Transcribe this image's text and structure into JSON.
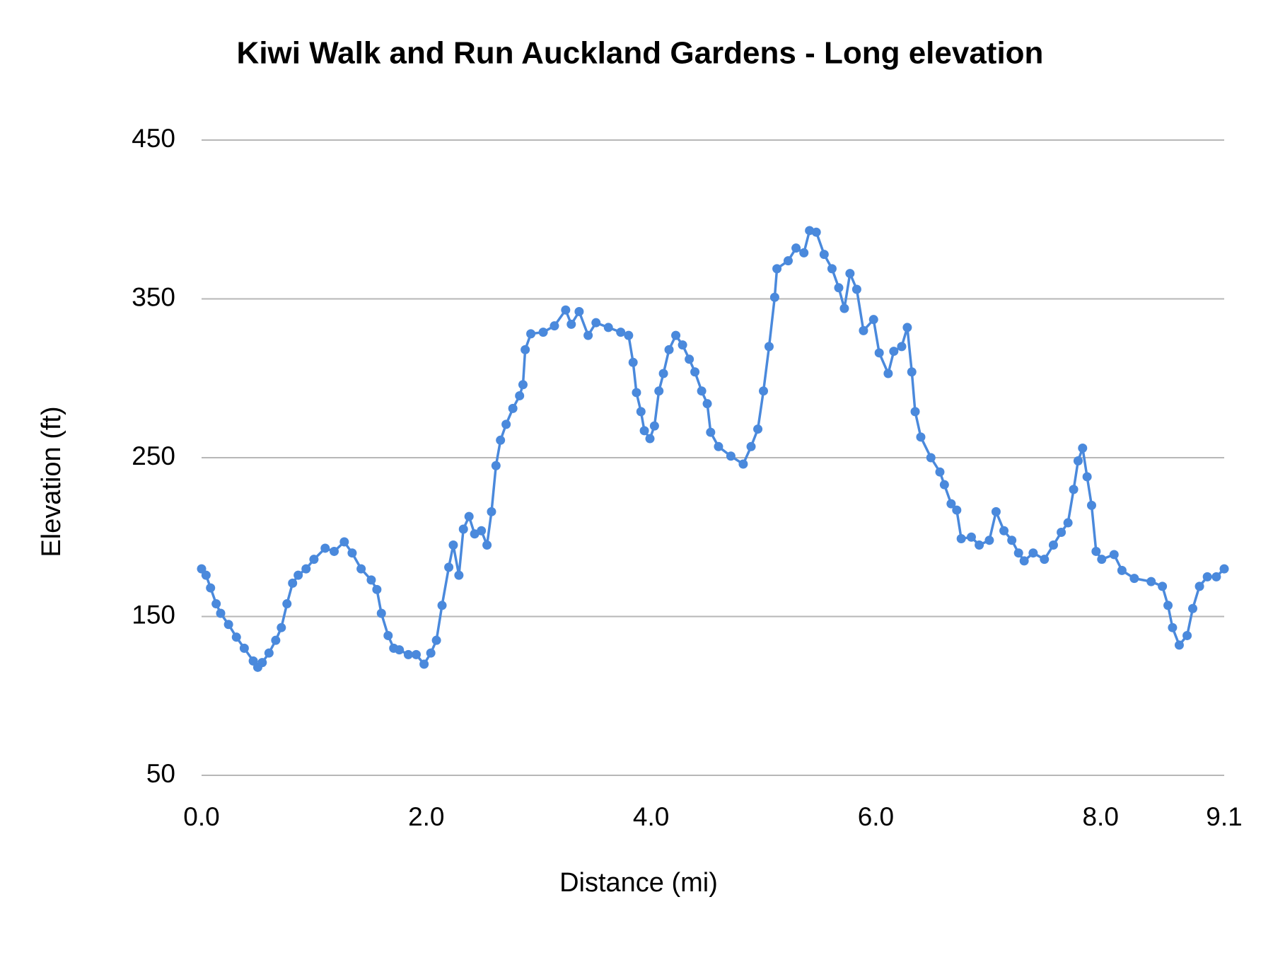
{
  "chart_data": {
    "type": "line",
    "title": "Kiwi Walk and Run Auckland Gardens - Long elevation",
    "x_label": "Distance (mi)",
    "y_label": "Elevation (ft)",
    "xlim": [
      0,
      9.1
    ],
    "xticks": [
      {
        "value": 0,
        "label": "0.0"
      },
      {
        "value": 2,
        "label": "2.0"
      },
      {
        "value": 4,
        "label": "4.0"
      },
      {
        "value": 6,
        "label": "6.0"
      },
      {
        "value": 8,
        "label": "8.0"
      },
      9.1
    ],
    "ylim": [
      50,
      450
    ],
    "yticks": [
      50,
      150,
      250,
      350,
      450
    ],
    "grid": true,
    "series": [
      {
        "color": "#4a89dc",
        "x": [
          0,
          0.04,
          0.08,
          0.13,
          0.17,
          0.24,
          0.31,
          0.38,
          0.46,
          0.5,
          0.54,
          0.6,
          0.66,
          0.71,
          0.76,
          0.81,
          0.86,
          0.93,
          1.0,
          1.1,
          1.18,
          1.27,
          1.34,
          1.42,
          1.51,
          1.56,
          1.6,
          1.66,
          1.71,
          1.76,
          1.84,
          1.91,
          1.98,
          2.04,
          2.09,
          2.14,
          2.2,
          2.24,
          2.29,
          2.33,
          2.38,
          2.43,
          2.49,
          2.54,
          2.58,
          2.62,
          2.66,
          2.71,
          2.77,
          2.83,
          2.86,
          2.88,
          2.93,
          3.04,
          3.14,
          3.24,
          3.29,
          3.36,
          3.44,
          3.51,
          3.62,
          3.73,
          3.8,
          3.84,
          3.87,
          3.91,
          3.94,
          3.99,
          4.03,
          4.07,
          4.11,
          4.16,
          4.22,
          4.28,
          4.34,
          4.39,
          4.45,
          4.5,
          4.53,
          4.6,
          4.71,
          4.82,
          4.89,
          4.95,
          5.0,
          5.05,
          5.1,
          5.12,
          5.22,
          5.29,
          5.36,
          5.41,
          5.47,
          5.54,
          5.61,
          5.67,
          5.72,
          5.77,
          5.83,
          5.89,
          5.98,
          6.03,
          6.11,
          6.16,
          6.23,
          6.28,
          6.32,
          6.35,
          6.4,
          6.49,
          6.57,
          6.61,
          6.67,
          6.72,
          6.76,
          6.85,
          6.92,
          7.01,
          7.07,
          7.14,
          7.21,
          7.27,
          7.32,
          7.4,
          7.5,
          7.58,
          7.65,
          7.71,
          7.76,
          7.8,
          7.84,
          7.88,
          7.92,
          7.96,
          8.01,
          8.12,
          8.19,
          8.3,
          8.45,
          8.55,
          8.6,
          8.64,
          8.7,
          8.77,
          8.82,
          8.88,
          8.95,
          9.03,
          9.1
        ],
        "values": [
          180,
          176,
          168,
          158,
          152,
          145,
          137,
          130,
          122,
          118,
          121,
          127,
          135,
          143,
          158,
          171,
          176,
          180,
          186,
          193,
          191,
          197,
          190,
          180,
          173,
          167,
          152,
          138,
          130,
          129,
          126,
          126,
          120,
          127,
          135,
          157,
          181,
          195,
          176,
          205,
          213,
          202,
          204,
          195,
          216,
          245,
          261,
          271,
          281,
          289,
          296,
          318,
          328,
          329,
          333,
          343,
          334,
          342,
          327,
          335,
          332,
          329,
          327,
          310,
          291,
          279,
          267,
          262,
          270,
          292,
          303,
          318,
          327,
          321,
          312,
          304,
          292,
          284,
          266,
          257,
          251,
          246,
          257,
          268,
          292,
          320,
          351,
          369,
          374,
          382,
          379,
          393,
          392,
          378,
          369,
          357,
          344,
          366,
          356,
          330,
          337,
          316,
          303,
          317,
          320,
          332,
          304,
          279,
          263,
          250,
          241,
          233,
          221,
          217,
          199,
          200,
          195,
          198,
          216,
          204,
          198,
          190,
          185,
          190,
          186,
          195,
          203,
          209,
          230,
          248,
          256,
          238,
          220,
          191,
          186,
          189,
          179,
          174,
          172,
          169,
          157,
          143,
          132,
          138,
          155,
          169,
          175,
          175,
          180
        ]
      }
    ]
  }
}
